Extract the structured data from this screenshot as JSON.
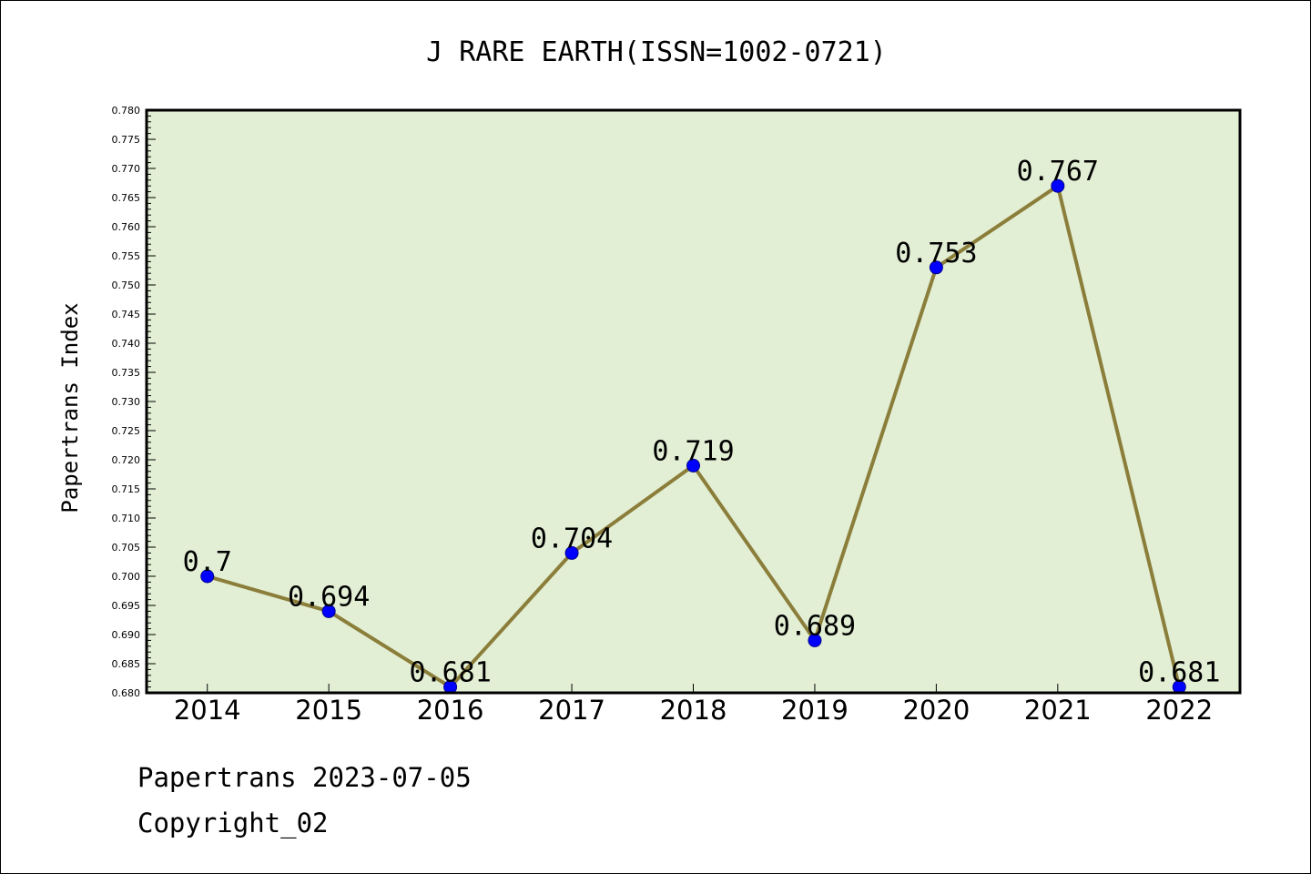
{
  "chart_data": {
    "type": "line",
    "title": "J RARE EARTH(ISSN=1002-0721)",
    "xlabel": "",
    "ylabel": "Papertrans Index",
    "categories": [
      "2014",
      "2015",
      "2016",
      "2017",
      "2018",
      "2019",
      "2020",
      "2021",
      "2022"
    ],
    "series": [
      {
        "values": [
          0.7,
          0.694,
          0.681,
          0.704,
          0.719,
          0.689,
          0.753,
          0.767,
          0.681
        ],
        "labels": [
          "0.7",
          "0.694",
          "0.681",
          "0.704",
          "0.719",
          "0.689",
          "0.753",
          "0.767",
          "0.681"
        ]
      }
    ],
    "ylim": [
      0.68,
      0.78
    ],
    "y_major_step": 0.005,
    "y_tick_labels": [
      "0.680",
      "0.685",
      "0.690",
      "0.695",
      "0.700",
      "0.705",
      "0.710",
      "0.715",
      "0.720",
      "0.725",
      "0.730",
      "0.735",
      "0.740",
      "0.745",
      "0.750",
      "0.755",
      "0.760",
      "0.765",
      "0.770",
      "0.775",
      "0.780"
    ],
    "grid": false,
    "legend": "none",
    "colors": {
      "plot_background": "#e2efd4",
      "line": "#8b7d3a",
      "marker": "#0000ff",
      "marker_edge": "#00008b",
      "axis": "#000000"
    }
  },
  "footer": {
    "line1": "Papertrans 2023-07-05",
    "line2": "Copyright_02"
  }
}
